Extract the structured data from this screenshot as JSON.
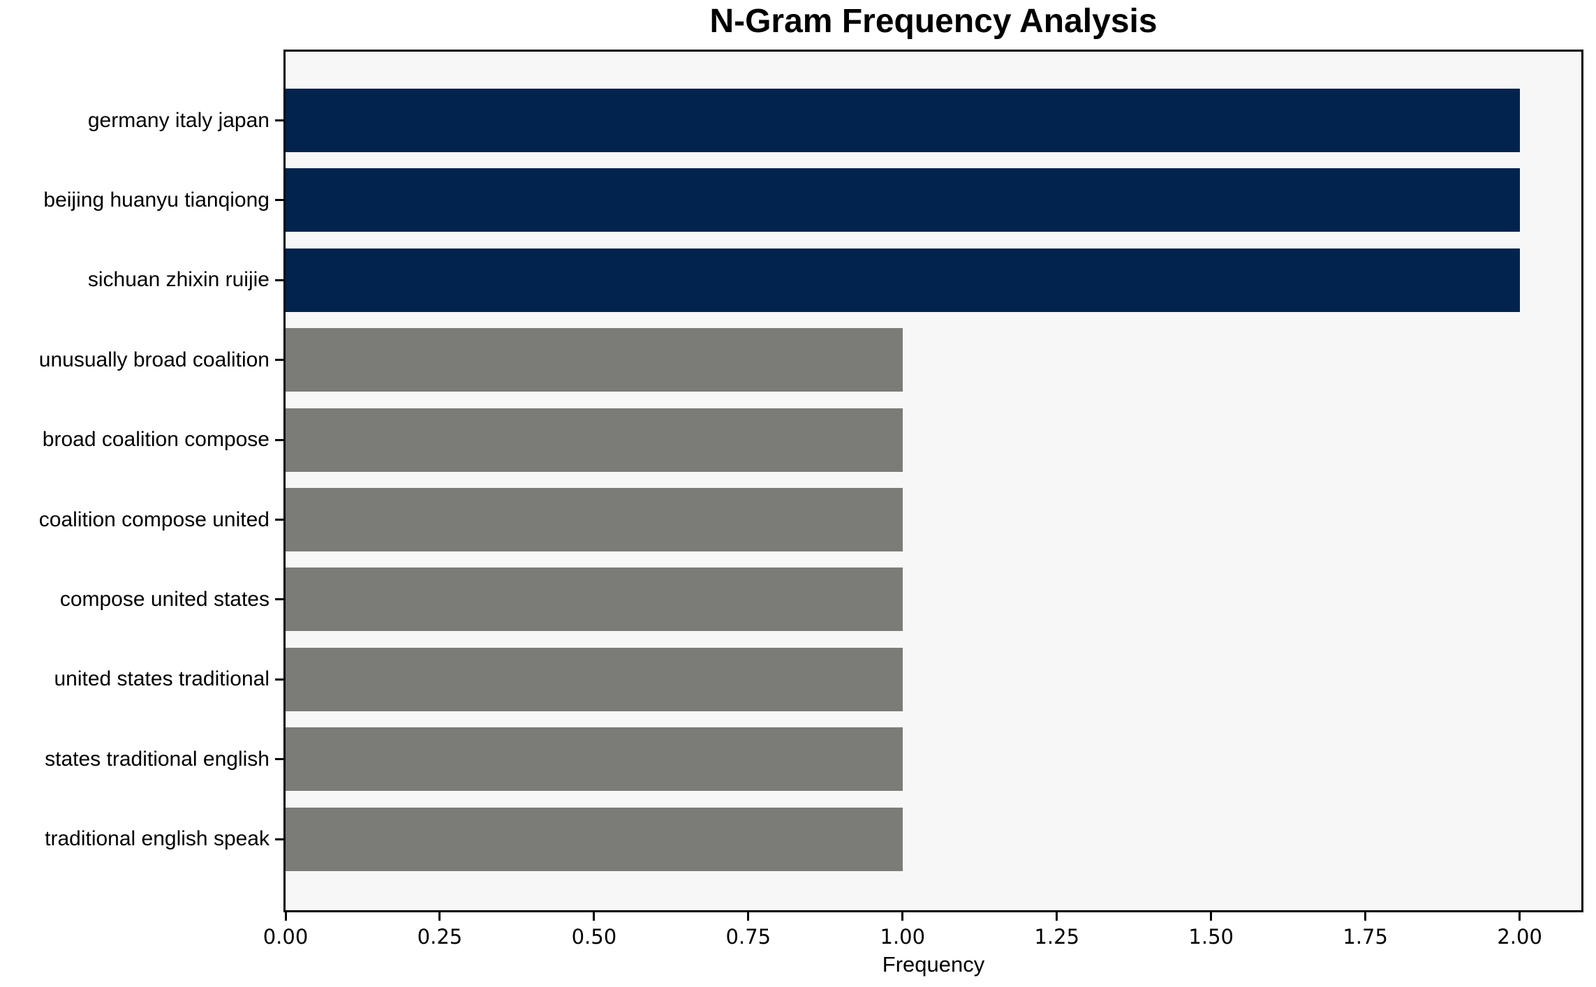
{
  "chart_data": {
    "type": "bar",
    "orientation": "horizontal",
    "title": "N-Gram Frequency Analysis",
    "xlabel": "Frequency",
    "ylabel": "",
    "categories": [
      "germany italy japan",
      "beijing huanyu tianqiong",
      "sichuan zhixin ruijie",
      "unusually broad coalition",
      "broad coalition compose",
      "coalition compose united",
      "compose united states",
      "united states traditional",
      "states traditional english",
      "traditional english speak"
    ],
    "values": [
      2,
      2,
      2,
      1,
      1,
      1,
      1,
      1,
      1,
      1
    ],
    "bar_colors": [
      "#02234d",
      "#02234d",
      "#02234d",
      "#7b7b77",
      "#7b7b77",
      "#7b7b77",
      "#7b7b77",
      "#7b7b77",
      "#7b7b77",
      "#7b7b77"
    ],
    "x_tick_labels": [
      "0.00",
      "0.25",
      "0.50",
      "0.75",
      "1.00",
      "1.25",
      "1.50",
      "1.75",
      "2.00"
    ],
    "x_tick_values": [
      0,
      0.25,
      0.5,
      0.75,
      1.0,
      1.25,
      1.5,
      1.75,
      2.0
    ],
    "xlim": [
      0,
      2.1
    ],
    "grid": false,
    "legend": "none",
    "plot_background": "#f7f7f7",
    "figure_background": "#ffffff",
    "highlight_color": "#02234d",
    "base_color": "#7b7b77"
  }
}
